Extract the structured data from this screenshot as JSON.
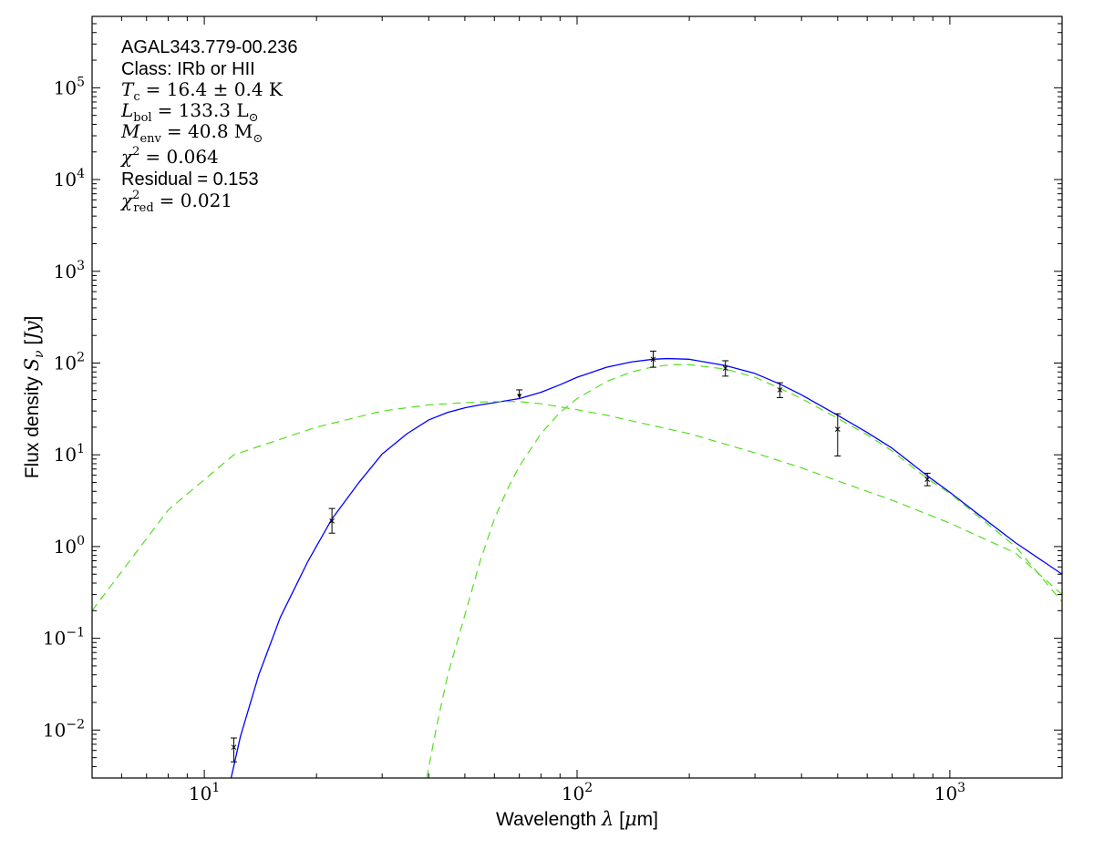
{
  "chart_data": {
    "type": "scatter",
    "xscale": "log",
    "yscale": "log",
    "xlim": [
      5,
      2000
    ],
    "ylim": [
      0.003,
      600000
    ],
    "xlabel": "Wavelength λ [μm]",
    "ylabel": "Flux density S_ν [Jy]",
    "x_ticks": [
      {
        "value": 10,
        "base": "10",
        "exp": "1"
      },
      {
        "value": 100,
        "base": "10",
        "exp": "2"
      },
      {
        "value": 1000,
        "base": "10",
        "exp": "3"
      }
    ],
    "y_ticks": [
      {
        "value": 0.01,
        "base": "10",
        "exp": "−2"
      },
      {
        "value": 0.1,
        "base": "10",
        "exp": "−1"
      },
      {
        "value": 1,
        "base": "10",
        "exp": "0"
      },
      {
        "value": 10,
        "base": "10",
        "exp": "1"
      },
      {
        "value": 100,
        "base": "10",
        "exp": "2"
      },
      {
        "value": 1000,
        "base": "10",
        "exp": "3"
      },
      {
        "value": 10000,
        "base": "10",
        "exp": "4"
      },
      {
        "value": 100000,
        "base": "10",
        "exp": "5"
      }
    ],
    "annotations": {
      "source": "AGAL343.779-00.236",
      "class": "Class: IRb or HII",
      "tc": "= 16.4 ± 0.4 K",
      "lbol": "= 133.3 L",
      "menv": "= 40.8 M",
      "chi2": "= 0.064",
      "residual": "Residual = 0.153",
      "chi2red": "= 0.021"
    },
    "series": [
      {
        "style": "errorbar-points",
        "color": "#000000",
        "points": [
          {
            "x": 12,
            "y": 0.0065,
            "lo": 0.0045,
            "hi": 0.0082
          },
          {
            "x": 22,
            "y": 1.9,
            "lo": 1.4,
            "hi": 2.6
          },
          {
            "x": 160,
            "y": 110,
            "lo": 90,
            "hi": 135
          },
          {
            "x": 250,
            "y": 88,
            "lo": 72,
            "hi": 106
          },
          {
            "x": 350,
            "y": 51,
            "lo": 42,
            "hi": 61
          },
          {
            "x": 500,
            "y": 19,
            "lo": 9.7,
            "hi": 28
          },
          {
            "x": 870,
            "y": 5.4,
            "lo": 4.6,
            "hi": 6.3
          }
        ],
        "upper_limits": [
          {
            "x": 70,
            "y": 51,
            "to": 42
          }
        ]
      },
      {
        "style": "line",
        "color": "#0000ff",
        "points": [
          [
            11.8,
            0.003
          ],
          [
            12.5,
            0.0085
          ],
          [
            14,
            0.04
          ],
          [
            16,
            0.17
          ],
          [
            19,
            0.7
          ],
          [
            22,
            2.0
          ],
          [
            26,
            5.0
          ],
          [
            30,
            10.2
          ],
          [
            35,
            17
          ],
          [
            40,
            24
          ],
          [
            45,
            29
          ],
          [
            50,
            32.5
          ],
          [
            55,
            35
          ],
          [
            60,
            37
          ],
          [
            70,
            41
          ],
          [
            80,
            48
          ],
          [
            90,
            58
          ],
          [
            100,
            70
          ],
          [
            120,
            90
          ],
          [
            140,
            103
          ],
          [
            160,
            110
          ],
          [
            175,
            112
          ],
          [
            200,
            110
          ],
          [
            250,
            94
          ],
          [
            300,
            77
          ],
          [
            350,
            59
          ],
          [
            400,
            45
          ],
          [
            500,
            27
          ],
          [
            600,
            17.5
          ],
          [
            700,
            11.8
          ],
          [
            870,
            5.9
          ],
          [
            1000,
            3.9
          ],
          [
            1200,
            2.2
          ],
          [
            1500,
            1.1
          ],
          [
            2000,
            0.5
          ]
        ]
      },
      {
        "style": "dashed",
        "color": "#55dd22",
        "points": [
          [
            5,
            0.2
          ],
          [
            8,
            2.5
          ],
          [
            12,
            10
          ],
          [
            20,
            20
          ],
          [
            30,
            30
          ],
          [
            40,
            35
          ],
          [
            50,
            37
          ],
          [
            60,
            38
          ],
          [
            70,
            38
          ],
          [
            80,
            36
          ],
          [
            100,
            31
          ],
          [
            120,
            27
          ],
          [
            150,
            22
          ],
          [
            200,
            17
          ],
          [
            300,
            10.5
          ],
          [
            400,
            7.2
          ],
          [
            500,
            5.2
          ],
          [
            700,
            3.2
          ],
          [
            1000,
            1.8
          ],
          [
            1500,
            0.85
          ],
          [
            2000,
            0.3
          ]
        ]
      },
      {
        "style": "dashed",
        "color": "#55dd22",
        "points": [
          [
            39.5,
            0.003
          ],
          [
            42,
            0.011
          ],
          [
            45,
            0.04
          ],
          [
            50,
            0.18
          ],
          [
            55,
            0.7
          ],
          [
            60,
            2.0
          ],
          [
            65,
            4.2
          ],
          [
            70,
            7.5
          ],
          [
            80,
            17
          ],
          [
            90,
            29
          ],
          [
            100,
            41
          ],
          [
            120,
            63
          ],
          [
            140,
            80
          ],
          [
            160,
            91
          ],
          [
            180,
            96
          ],
          [
            200,
            96
          ],
          [
            250,
            86
          ],
          [
            300,
            70
          ],
          [
            350,
            53
          ],
          [
            400,
            41
          ],
          [
            500,
            25
          ],
          [
            600,
            16.5
          ],
          [
            700,
            11
          ],
          [
            870,
            5.5
          ],
          [
            1000,
            3.8
          ],
          [
            1500,
            1.0
          ],
          [
            2000,
            0.25
          ]
        ]
      }
    ]
  }
}
